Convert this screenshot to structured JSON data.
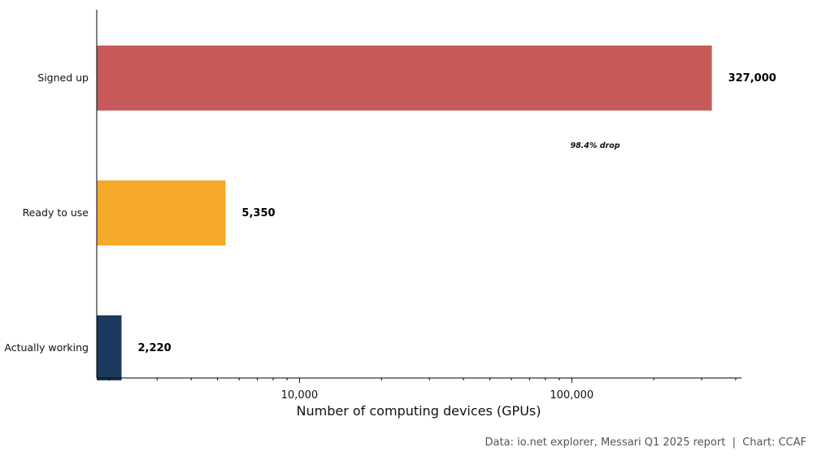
{
  "chart_data": {
    "type": "bar",
    "orientation": "horizontal",
    "x_scale": "log",
    "categories": [
      "Signed up",
      "Ready to use",
      "Actually working"
    ],
    "values": [
      327000,
      5350,
      2220
    ],
    "value_labels": [
      "327,000",
      "5,350",
      "2,220"
    ],
    "colors": [
      "#C85A5A",
      "#F5A928",
      "#1C3A5E"
    ],
    "xlabel": "Number of computing devices (GPUs)",
    "ylabel": "",
    "xlim": [
      1800,
      420000
    ],
    "xticks": [
      10000,
      100000
    ],
    "xtick_labels": [
      "10,000",
      "100,000"
    ],
    "annotation": "98.4% drop",
    "grid": false
  },
  "source": "Data: io.net explorer, Messari Q1 2025 report  |  Chart: CCAF"
}
